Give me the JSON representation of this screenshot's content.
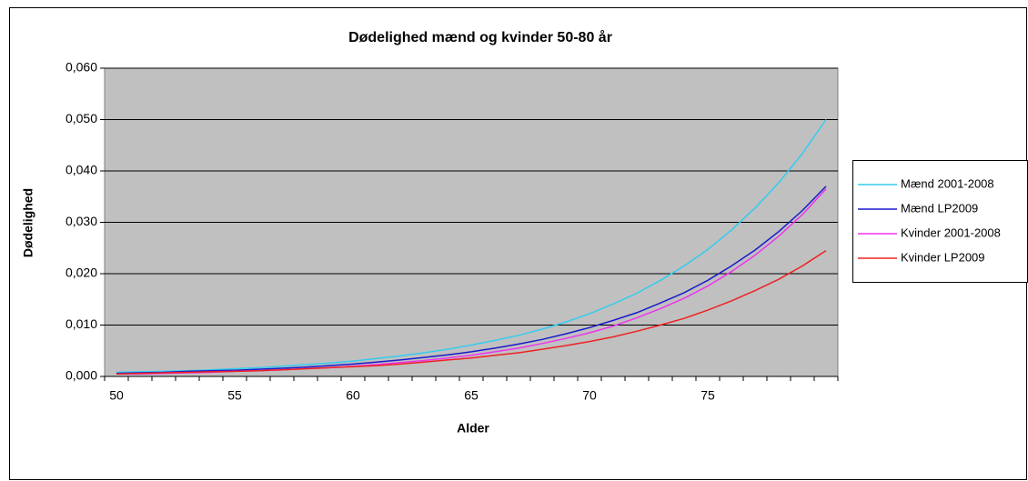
{
  "chart_data": {
    "type": "line",
    "title": "Dødelighed mænd og kvinder 50-80 år",
    "x_label": "Alder",
    "y_label": "Dødelighed",
    "categories": [
      "50",
      null,
      null,
      null,
      null,
      "55",
      null,
      null,
      null,
      null,
      "60",
      null,
      null,
      null,
      null,
      "65",
      null,
      null,
      null,
      null,
      "70",
      null,
      null,
      null,
      null,
      "75",
      null,
      null,
      null,
      null,
      null
    ],
    "series": [
      {
        "name": "Mænd 2001-2008",
        "color": "#33ccee",
        "values": [
          0.0008,
          0.0009,
          0.001,
          0.0011,
          0.0013,
          0.0015,
          0.0017,
          0.002,
          0.0023,
          0.0026,
          0.003,
          0.0035,
          0.004,
          0.0046,
          0.0053,
          0.0061,
          0.007,
          0.008,
          0.0092,
          0.0106,
          0.0122,
          0.0141,
          0.0162,
          0.0187,
          0.0215,
          0.0247,
          0.0285,
          0.0328,
          0.0377,
          0.0434,
          0.05
        ]
      },
      {
        "name": "Mænd LP2009",
        "color": "#1a1acc",
        "values": [
          0.0006,
          0.0007,
          0.0008,
          0.001,
          0.0011,
          0.0012,
          0.0014,
          0.0016,
          0.0018,
          0.0021,
          0.0024,
          0.0028,
          0.0032,
          0.0037,
          0.0042,
          0.0048,
          0.0055,
          0.0063,
          0.0072,
          0.0083,
          0.0095,
          0.0109,
          0.0124,
          0.0143,
          0.0163,
          0.0187,
          0.0215,
          0.0246,
          0.0282,
          0.0323,
          0.037
        ]
      },
      {
        "name": "Kvinder 2001-2008",
        "color": "#ee33ee",
        "values": [
          0.0005,
          0.0005,
          0.0006,
          0.0007,
          0.0008,
          0.001,
          0.0011,
          0.0013,
          0.0015,
          0.0017,
          0.002,
          0.0023,
          0.0027,
          0.0031,
          0.0036,
          0.0041,
          0.0048,
          0.0055,
          0.0064,
          0.0074,
          0.0085,
          0.0098,
          0.0114,
          0.0132,
          0.0152,
          0.0176,
          0.0204,
          0.0236,
          0.0273,
          0.0315,
          0.0365
        ]
      },
      {
        "name": "Kvinder LP2009",
        "color": "#ee2222",
        "values": [
          0.0005,
          0.0006,
          0.0007,
          0.0008,
          0.0009,
          0.001,
          0.0011,
          0.0013,
          0.0015,
          0.0017,
          0.0019,
          0.0021,
          0.0024,
          0.0028,
          0.0032,
          0.0036,
          0.0041,
          0.0046,
          0.0053,
          0.006,
          0.0068,
          0.0077,
          0.0088,
          0.01,
          0.0113,
          0.0129,
          0.0147,
          0.0167,
          0.0189,
          0.0215,
          0.0245
        ]
      }
    ],
    "ylim": [
      0,
      0.06
    ],
    "yticks": [
      {
        "value": 0,
        "label": "0,000"
      },
      {
        "value": 0.01,
        "label": "0,010"
      },
      {
        "value": 0.02,
        "label": "0,020"
      },
      {
        "value": 0.03,
        "label": "0,030"
      },
      {
        "value": 0.04,
        "label": "0,040"
      },
      {
        "value": 0.05,
        "label": "0,050"
      },
      {
        "value": 0.06,
        "label": "0,060"
      }
    ],
    "grid": true,
    "legend": "right"
  }
}
